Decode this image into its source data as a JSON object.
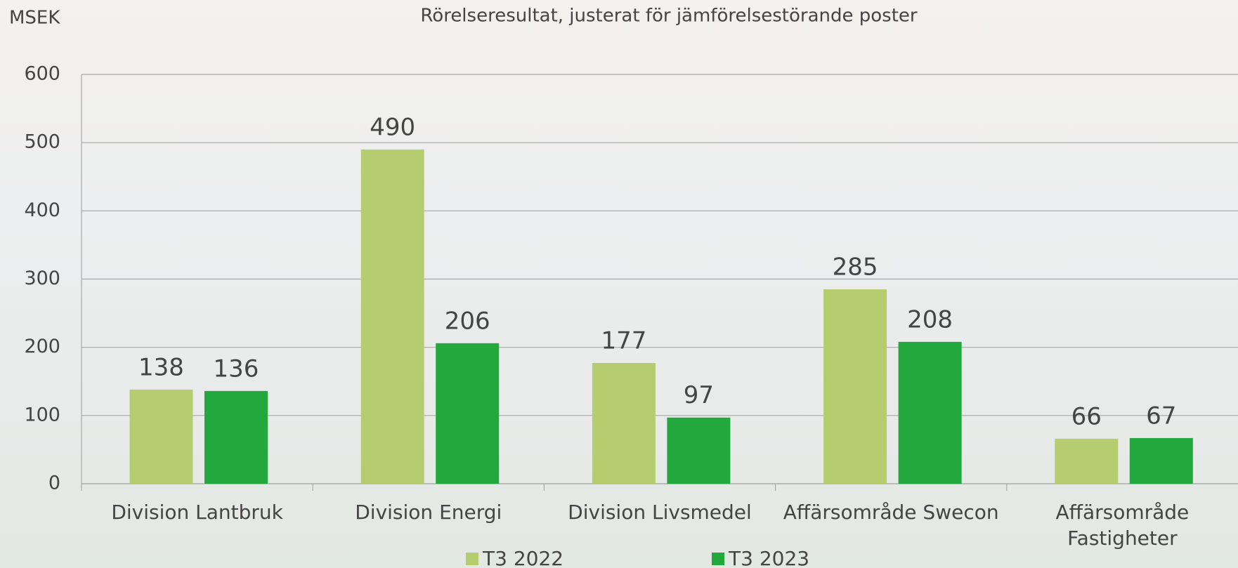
{
  "chart_data": {
    "type": "bar",
    "title": "Rörelseresultat, justerat för jämförelsestörande poster",
    "y_label": "MSEK",
    "categories": [
      "Division Lantbruk",
      "Division Energi",
      "Division Livsmedel",
      "Affärsområde Swecon",
      "Affärsområde Fastigheter"
    ],
    "series": [
      {
        "name": "T3 2022",
        "color": "#b5cc6f",
        "values": [
          138,
          490,
          177,
          285,
          66
        ]
      },
      {
        "name": "T3 2023",
        "color": "#22a83c",
        "values": [
          136,
          206,
          97,
          208,
          67
        ]
      }
    ],
    "ylim": [
      0,
      600
    ],
    "yticks": [
      0,
      100,
      200,
      300,
      400,
      500,
      600
    ],
    "grid": true,
    "legend": "bottom"
  }
}
